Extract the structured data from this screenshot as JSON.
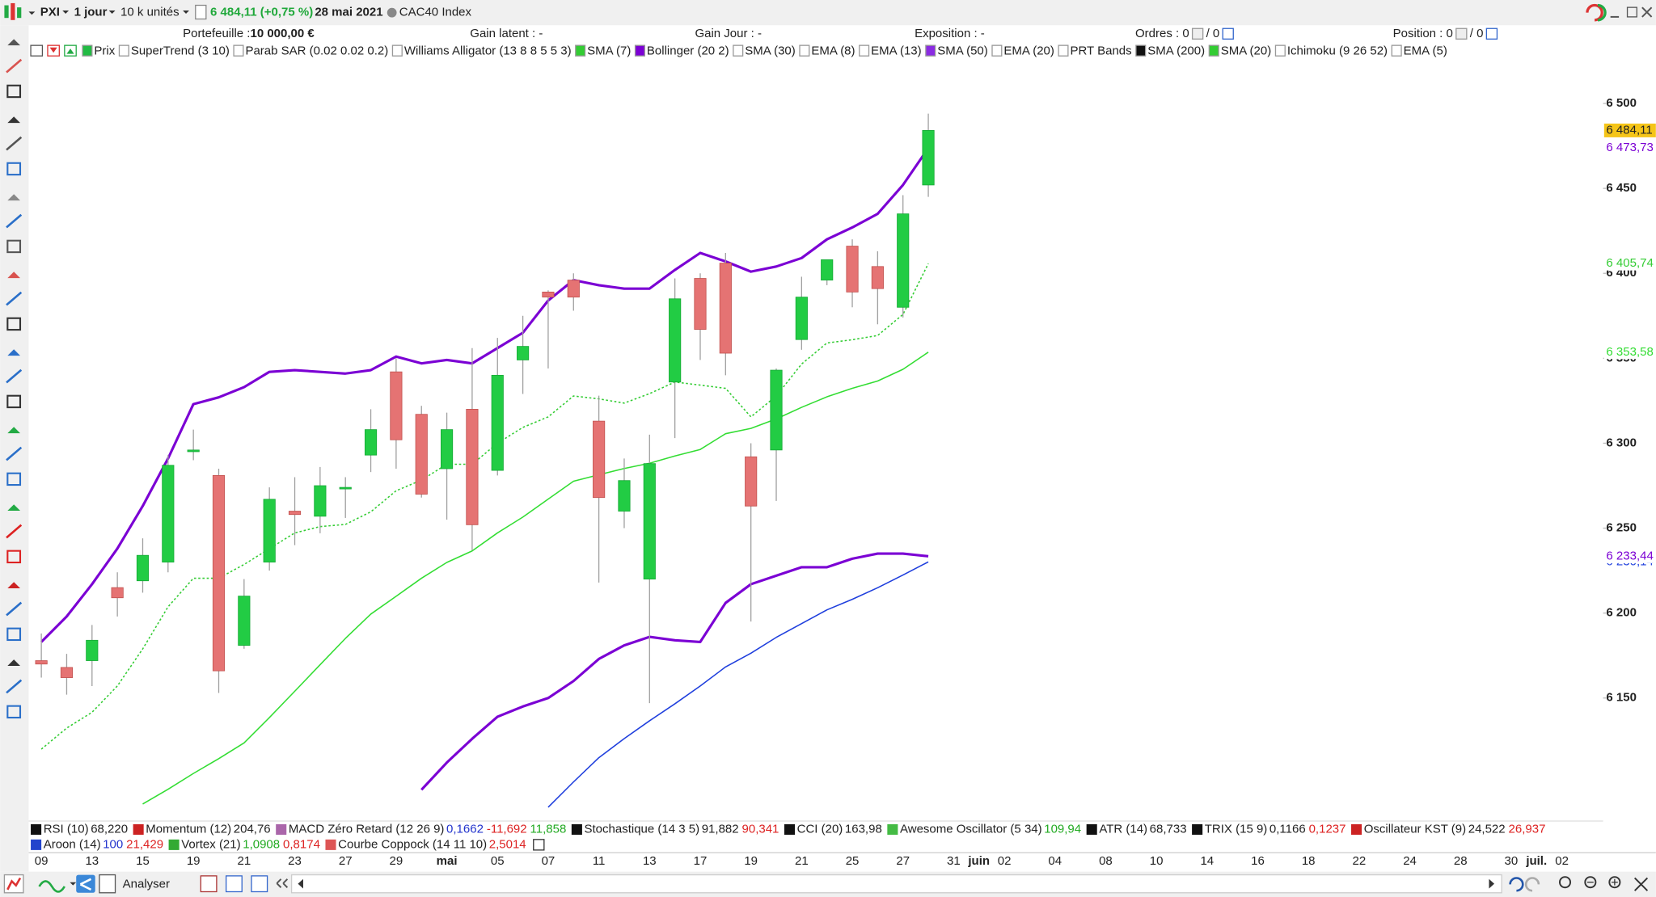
{
  "toolbar": {
    "symbol": "PXI",
    "period": "1 jour",
    "units": "10 k unités",
    "price": "6 484,11 (+0,75 %)",
    "date": "28 mai 2021",
    "instrument": "CAC40 Index",
    "button": "Analyser"
  },
  "account_bar": [
    {
      "text": "Portefeuille : ",
      "bold": "10 000,00 €"
    },
    {
      "text": "Gain latent : -"
    },
    {
      "text": "Gain Jour : -"
    },
    {
      "text": "Exposition : -"
    },
    {
      "text": "Ordres : 0",
      "sub": "/ 0"
    },
    {
      "text": "Position : 0",
      "sub": "/ 0"
    }
  ],
  "indicators": [
    {
      "name": "Prix",
      "color": "#22bb44"
    },
    {
      "name": "SuperTrend (3 10)"
    },
    {
      "name": "Parab SAR (0.02 0.02 0.2)"
    },
    {
      "name": "Williams Alligator (13 8 8 5 5 3)"
    },
    {
      "name": "SMA (7)",
      "color": "#33cc33"
    },
    {
      "name": "Bollinger (20 2)",
      "color": "#7b00d4"
    },
    {
      "name": "SMA (30)"
    },
    {
      "name": "EMA (8)"
    },
    {
      "name": "EMA (13)"
    },
    {
      "name": "SMA (50)",
      "color": "#8a2be2"
    },
    {
      "name": "EMA (20)"
    },
    {
      "name": "PRT Bands"
    },
    {
      "name": "SMA (200)",
      "color": "#111111"
    },
    {
      "name": "SMA (20)",
      "color": "#33cc33"
    },
    {
      "name": "Ichimoku (9 26 52)"
    },
    {
      "name": "EMA (5)"
    }
  ],
  "oscillators": [
    [
      {
        "name": "RSI (10)",
        "color": "#111111",
        "values": [
          {
            "text": "68,220",
            "color": "#222222"
          }
        ]
      },
      {
        "name": "Momentum (12)",
        "color": "#cc2222",
        "values": [
          {
            "text": "204,76",
            "color": "#222222"
          }
        ]
      },
      {
        "name": "MACD Zéro Retard (12 26 9)",
        "color": "#aa66aa",
        "values": [
          {
            "text": "0,1662",
            "color": "#2233cc"
          },
          {
            "text": "-11,692",
            "color": "#dd2222"
          },
          {
            "text": "11,858",
            "color": "#22aa22"
          }
        ]
      },
      {
        "name": "Stochastique (14 3 5)",
        "color": "#111111",
        "values": [
          {
            "text": "91,882",
            "color": "#222222"
          },
          {
            "text": "90,341",
            "color": "#dd2222"
          }
        ]
      },
      {
        "name": "CCI (20)",
        "color": "#111111",
        "values": [
          {
            "text": "163,98",
            "color": "#222222"
          }
        ]
      },
      {
        "name": "Awesome Oscillator (5 34)",
        "color": "#44bb44",
        "values": [
          {
            "text": "109,94",
            "color": "#22aa22"
          }
        ]
      },
      {
        "name": "ATR (14)",
        "color": "#111111",
        "values": [
          {
            "text": "68,733",
            "color": "#222222"
          }
        ]
      },
      {
        "name": "TRIX (15 9)",
        "color": "#111111",
        "values": [
          {
            "text": "0,1166",
            "color": "#222222"
          },
          {
            "text": "0,1237",
            "color": "#dd2222"
          }
        ]
      },
      {
        "name": "Oscillateur KST (9)",
        "color": "#cc2222",
        "values": [
          {
            "text": "24,522",
            "color": "#222222"
          },
          {
            "text": "26,937",
            "color": "#dd2222"
          }
        ]
      }
    ],
    [
      {
        "name": "Aroon (14)",
        "color": "#2244cc",
        "values": [
          {
            "text": "100",
            "color": "#2233cc"
          },
          {
            "text": "21,429",
            "color": "#dd2222"
          }
        ]
      },
      {
        "name": "Vortex (21)",
        "color": "#33aa33",
        "values": [
          {
            "text": "1,0908",
            "color": "#22aa22"
          },
          {
            "text": "0,8174",
            "color": "#dd2222"
          }
        ]
      },
      {
        "name": "Courbe Coppock (14 11 10)",
        "color": "#dd5555",
        "values": [
          {
            "text": "2,5014",
            "color": "#dd2222"
          }
        ]
      }
    ]
  ],
  "chart_data": {
    "type": "candlestick",
    "categories": [
      "09",
      null,
      "13",
      null,
      "15",
      null,
      "19",
      null,
      "21",
      null,
      "23",
      null,
      "27",
      null,
      "29",
      null,
      "mai",
      null,
      "05",
      null,
      "07",
      null,
      "11",
      null,
      "13",
      null,
      "17",
      null,
      "19",
      null,
      "21",
      null,
      "25",
      null,
      "27",
      null,
      "31",
      "juin",
      "02",
      null,
      "04",
      null,
      "08",
      null,
      "10",
      null,
      "14",
      null,
      "16",
      null,
      "18",
      null,
      "22",
      null,
      "24",
      null,
      "28",
      null,
      "30",
      "juil.",
      "02"
    ],
    "open": [
      6172,
      6168,
      6172,
      6215,
      6219,
      6230,
      6295,
      6281,
      6181,
      6230,
      6260,
      6257,
      6274,
      6293,
      6342,
      6317,
      6285,
      6320,
      6284,
      6349,
      6389,
      6396,
      6313,
      6260,
      6220,
      6336,
      6397,
      6406,
      6292,
      6296,
      6361,
      6396,
      6416,
      6404,
      6380,
      6452,
      null,
      null,
      null,
      null,
      null,
      null,
      null,
      null,
      null,
      null,
      null,
      null,
      null,
      null,
      null,
      null,
      null,
      null,
      null,
      null,
      null,
      null,
      null,
      null,
      null
    ],
    "high": [
      6188,
      6176,
      6193,
      6224,
      6244,
      6293,
      6308,
      6285,
      6220,
      6274,
      6280,
      6286,
      6280,
      6320,
      6350,
      6322,
      6318,
      6356,
      6362,
      6375,
      6390,
      6400,
      6328,
      6291,
      6305,
      6397,
      6400,
      6412,
      6300,
      6344,
      6398,
      6408,
      6420,
      6413,
      6446,
      6494,
      null,
      null,
      null,
      null,
      null,
      null,
      null,
      null,
      null,
      null,
      null,
      null,
      null,
      null,
      null,
      null,
      null,
      null,
      null,
      null,
      null,
      null,
      null,
      null,
      null
    ],
    "low": [
      6162,
      6152,
      6157,
      6198,
      6212,
      6224,
      6290,
      6153,
      6179,
      6225,
      6240,
      6247,
      6256,
      6283,
      6285,
      6268,
      6255,
      6237,
      6281,
      6329,
      6344,
      6378,
      6218,
      6250,
      6147,
      6303,
      6349,
      6340,
      6195,
      6266,
      6355,
      6393,
      6380,
      6370,
      6374,
      6445,
      null,
      null,
      null,
      null,
      null,
      null,
      null,
      null,
      null,
      null,
      null,
      null,
      null,
      null,
      null,
      null,
      null,
      null,
      null,
      null,
      null,
      null,
      null,
      null,
      null
    ],
    "close": [
      6170,
      6162,
      6184,
      6209,
      6234,
      6287,
      6296,
      6166,
      6210,
      6267,
      6258,
      6275,
      6274,
      6308,
      6302,
      6270,
      6308,
      6252,
      6340,
      6357,
      6386,
      6386,
      6268,
      6278,
      6288,
      6385,
      6367,
      6353,
      6263,
      6343,
      6386,
      6408,
      6389,
      6391,
      6435,
      6484.11,
      null,
      null,
      null,
      null,
      null,
      null,
      null,
      null,
      null,
      null,
      null,
      null,
      null,
      null,
      null,
      null,
      null,
      null,
      null,
      null,
      null,
      null,
      null,
      null,
      null
    ],
    "close_label": "6 484,11",
    "close_tag_color": "#f5c518",
    "up_color": "#22cc44",
    "down_color": "#e57373",
    "series": [
      {
        "color": "#33cc33",
        "style": "dotted",
        "last_label": "6 405,74",
        "values": [
          6119.9,
          6132.3,
          6141.6,
          6157.1,
          6178.9,
          6203.7,
          6220.5,
          6220.5,
          6228.6,
          6237.9,
          6247.2,
          6250.9,
          6252.2,
          6259.6,
          6272.0,
          6278.3,
          6287.6,
          6287.6,
          6300.0,
          6309.3,
          6315.5,
          6327.8,
          6326.1,
          6323.6,
          6329.2,
          6336.0,
          6334.2,
          6332.3,
          6315.5,
          6327.8,
          6346.6,
          6359.0,
          6360.9,
          6363.4,
          6375.8,
          6405.74,
          null,
          null,
          null,
          null,
          null,
          null,
          null,
          null,
          null,
          null,
          null,
          null,
          null,
          null,
          null,
          null,
          null,
          null,
          null,
          null,
          null,
          null,
          null,
          null,
          null
        ]
      },
      {
        "color": "#33dd33",
        "style": "solid",
        "last_label": "6 353,58",
        "values": [
          null,
          null,
          null,
          null,
          6087.6,
          6096.3,
          6105.6,
          6114.3,
          6123.6,
          6138.5,
          6154.0,
          6169.6,
          6185.1,
          6199.4,
          6209.9,
          6220.5,
          6229.8,
          6236.6,
          6247.2,
          6256.5,
          6267.1,
          6277.6,
          6281.4,
          6285.1,
          6288.2,
          6292.5,
          6296.3,
          6305.6,
          6308.7,
          6314.3,
          6321.1,
          6327.3,
          6332.3,
          6336.6,
          6343.5,
          6353.58,
          null,
          null,
          null,
          null,
          null,
          null,
          null,
          null,
          null,
          null,
          null,
          null,
          null,
          null,
          null,
          null,
          null,
          null,
          null,
          null,
          null,
          null,
          null,
          null,
          null
        ]
      },
      {
        "color": "#1f3fdd",
        "style": "solid",
        "last_label": "6 230,14",
        "values": [
          null,
          null,
          null,
          null,
          null,
          null,
          null,
          null,
          null,
          null,
          null,
          null,
          null,
          null,
          null,
          null,
          null,
          null,
          null,
          null,
          6085.7,
          6100.6,
          6114.9,
          6126.1,
          6136.6,
          6146.6,
          6157.1,
          6168.3,
          6176.4,
          6185.7,
          6193.8,
          6201.9,
          6208.1,
          6214.9,
          6222.4,
          6230.14,
          null,
          null,
          null,
          null,
          null,
          null,
          null,
          null,
          null,
          null,
          null,
          null,
          null,
          null,
          null,
          null,
          null,
          null,
          null,
          null,
          null,
          null,
          null,
          null,
          null
        ]
      },
      {
        "color": "#7b00d4",
        "style": "bold",
        "last_label": "6 473,73",
        "values": [
          6183,
          6198,
          6217,
          6238,
          6263,
          6291,
          6323,
          6327,
          6333,
          6342,
          6343,
          6342,
          6341,
          6343,
          6351,
          6347,
          6349,
          6347,
          6356,
          6365,
          6384,
          6396,
          6393,
          6391,
          6391,
          6402,
          6412,
          6407,
          6401,
          6404,
          6409,
          6420,
          6427,
          6435,
          6452,
          6473.73,
          null,
          null,
          null,
          null,
          null,
          null,
          null,
          null,
          null,
          null,
          null,
          null,
          null,
          null,
          null,
          null,
          null,
          null,
          null,
          null,
          null,
          null,
          null,
          null,
          null
        ]
      },
      {
        "color": "#7b00d4",
        "style": "bold",
        "last_label": "6 233,44",
        "values": [
          null,
          null,
          null,
          null,
          null,
          null,
          null,
          null,
          null,
          null,
          null,
          null,
          null,
          null,
          null,
          6096,
          6112,
          6126,
          6139,
          6145,
          6150,
          6160,
          6173,
          6181,
          6186,
          6184,
          6183,
          6206,
          6217,
          6222,
          6227,
          6227,
          6232,
          6235,
          6235,
          6233.44,
          null,
          null,
          null,
          null,
          null,
          null,
          null,
          null,
          null,
          null,
          null,
          null,
          null,
          null,
          null,
          null,
          null,
          null,
          null,
          null,
          null,
          null,
          null,
          null,
          null
        ]
      }
    ],
    "ylim": [
      6077.6,
      6534.8
    ],
    "yticks": [
      {
        "value": 6150,
        "label": "6 150"
      },
      {
        "value": 6200,
        "label": "6 200"
      },
      {
        "value": 6250,
        "label": "6 250"
      },
      {
        "value": 6300,
        "label": "6 300"
      },
      {
        "value": 6350,
        "label": "6 350"
      },
      {
        "value": 6400,
        "label": "6 400"
      },
      {
        "value": 6450,
        "label": "6 450"
      },
      {
        "value": 6500,
        "label": "6 500"
      }
    ],
    "grid": false
  }
}
